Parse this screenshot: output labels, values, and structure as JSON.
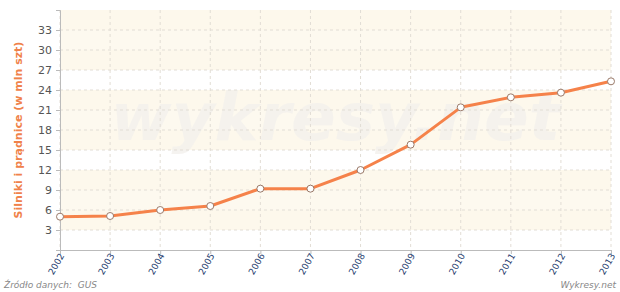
{
  "chart_data": {
    "type": "line",
    "y_label": "Silniki i prądnice (w mln szt)",
    "source": "Źródło danych:  GUS",
    "credit": "Wykresy.net",
    "watermark": "wykresy.net",
    "x": [
      2002,
      2003,
      2004,
      2005,
      2006,
      2007,
      2008,
      2009,
      2010,
      2011,
      2012,
      2013
    ],
    "values": [
      5.0,
      5.1,
      6.0,
      6.6,
      9.2,
      9.2,
      12.0,
      15.8,
      21.4,
      22.9,
      23.6,
      25.3
    ],
    "color": "#f5824a",
    "marker": "circle",
    "xlim": [
      2002,
      2013
    ],
    "xticks": [
      2002,
      2003,
      2004,
      2005,
      2006,
      2007,
      2008,
      2009,
      2010,
      2011,
      2012,
      2013
    ],
    "ylim": [
      0,
      36
    ],
    "yticks": [
      3,
      6,
      9,
      12,
      15,
      18,
      21,
      24,
      27,
      30,
      33
    ],
    "grid": true
  }
}
